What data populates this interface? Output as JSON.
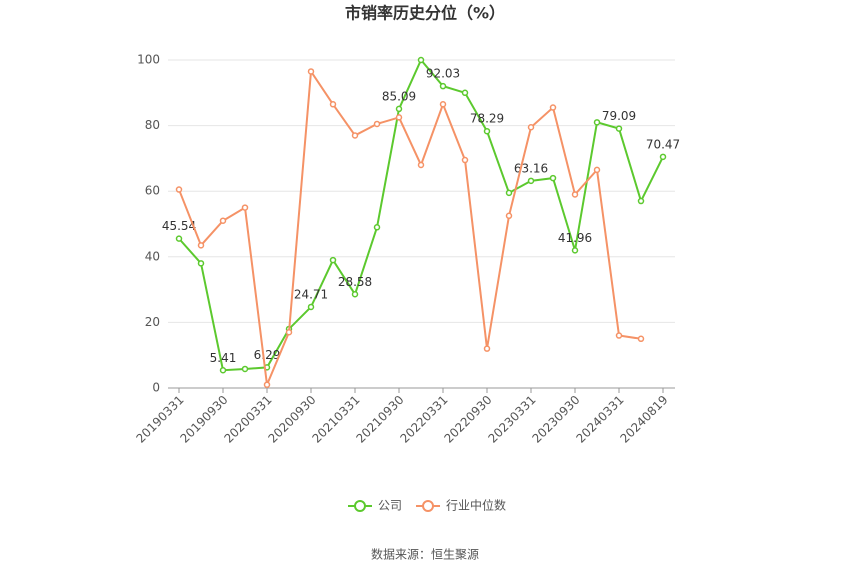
{
  "chart_data": {
    "type": "line",
    "title": "市销率历史分位（%）",
    "source": "数据来源：恒生聚源",
    "categories": [
      "20190331",
      null,
      "20190930",
      null,
      "20200331",
      null,
      "20200930",
      null,
      "20210331",
      null,
      "20210930",
      null,
      "20220331",
      null,
      "20220930",
      null,
      "20230331",
      null,
      "20230930",
      null,
      "20240331",
      null,
      "20240819"
    ],
    "series": [
      {
        "name": "公司",
        "color": "#5cc92e",
        "values": [
          45.54,
          38,
          5.41,
          5.8,
          6.29,
          18,
          24.71,
          39,
          28.58,
          49,
          85.09,
          100,
          92.03,
          90,
          78.29,
          59.5,
          63.16,
          64,
          41.96,
          81,
          79.09,
          57,
          70.47
        ],
        "value_labels": [
          "45.54",
          null,
          "5.41",
          null,
          "6.29",
          null,
          "24.71",
          null,
          "28.58",
          null,
          "85.09",
          null,
          "92.03",
          null,
          "78.29",
          null,
          "63.16",
          null,
          "41.96",
          null,
          "79.09",
          null,
          "70.47"
        ]
      },
      {
        "name": "行业中位数",
        "color": "#f59266",
        "values": [
          60.5,
          43.5,
          51,
          55,
          1,
          17,
          96.5,
          86.5,
          77,
          80.5,
          82.5,
          68,
          86.5,
          69.5,
          12,
          52.5,
          79.5,
          85.5,
          59,
          66.5,
          16,
          15,
          null
        ]
      }
    ],
    "ylim": [
      0,
      100
    ],
    "yticks": [
      0,
      20,
      40,
      60,
      80,
      100
    ],
    "grid": true
  }
}
